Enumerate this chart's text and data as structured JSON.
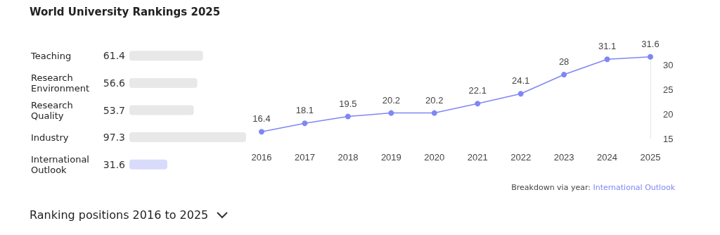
{
  "chart_data": [
    {
      "type": "bar",
      "title": "World University Rankings 2025",
      "orientation": "horizontal",
      "categories": [
        "Teaching",
        "Research Environment",
        "Research Quality",
        "Industry",
        "International Outlook"
      ],
      "values": [
        61.4,
        56.6,
        53.7,
        97.3,
        31.6
      ],
      "colors": [
        "#e8e8e8",
        "#e8e8e8",
        "#e8e8e8",
        "#e8e8e8",
        "#d9dbfb"
      ],
      "data_labels": true,
      "tick_labels": "y",
      "grid": false,
      "annotations": [
        "Ranking positions 2016 to 2025"
      ]
    },
    {
      "type": "line",
      "categories": [
        "2016",
        "2017",
        "2018",
        "2019",
        "2020",
        "2021",
        "2022",
        "2023",
        "2024",
        "2025"
      ],
      "series": [
        {
          "color": "#7f86f5",
          "values": [
            16.4,
            18.1,
            19.5,
            20.2,
            20.2,
            22.1,
            24.1,
            28,
            31.1,
            31.6
          ]
        }
      ],
      "ylim": [
        15,
        32
      ],
      "yticks": [
        15,
        20,
        25,
        30
      ],
      "grid": false,
      "marker": "circle",
      "line_style": "solid",
      "data_labels": true,
      "annotations": [
        "Breakdown via year:",
        "International Outlook"
      ]
    }
  ]
}
